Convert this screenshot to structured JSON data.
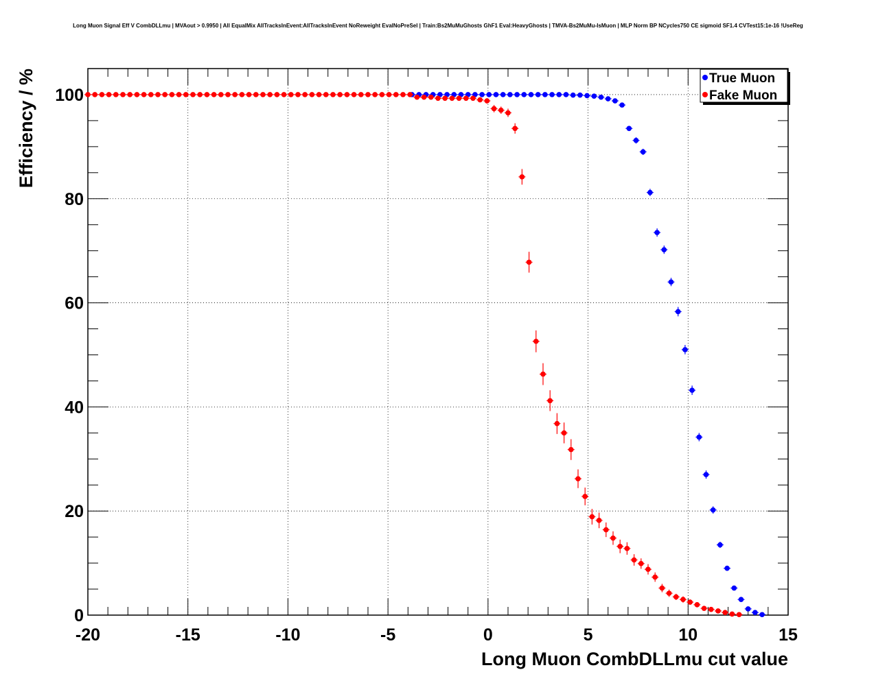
{
  "chart_data": {
    "type": "scatter",
    "title": "Long Muon Signal Eff V CombDLLmu | MVAout > 0.9950 | All EqualMix AllTracksInEvent:AllTracksInEvent NoReweight EvalNoPreSel | Train:Bs2MuMuGhosts GhF1 Eval:HeavyGhosts | TMVA-Bs2MuMu-IsMuon | MLP Norm BP NCycles750 CE sigmoid SF1.4 CVTest15:1e-16 !UseReg",
    "xlabel": "Long Muon CombDLLmu cut value",
    "ylabel": "Efficiency / %",
    "xlim": [
      -20,
      15
    ],
    "ylim": [
      0,
      105
    ],
    "xticks": [
      -20,
      -15,
      -10,
      -5,
      0,
      5,
      10,
      15
    ],
    "yticks": [
      0,
      20,
      40,
      60,
      80,
      100
    ],
    "xtick_labels": [
      "-20",
      "-15",
      "-10",
      "-5",
      "0",
      "5",
      "10",
      "15"
    ],
    "ytick_labels": [
      "0",
      "20",
      "40",
      "60",
      "80",
      "100"
    ],
    "grid": true,
    "legend_position": "top-right",
    "series": [
      {
        "name": "True Muon",
        "color": "#0000ff",
        "x": [
          -3.8,
          -3.45,
          -3.1,
          -2.75,
          -2.4,
          -2.05,
          -1.7,
          -1.35,
          -1.0,
          -0.65,
          -0.3,
          0.05,
          0.4,
          0.75,
          1.1,
          1.45,
          1.8,
          2.15,
          2.5,
          2.85,
          3.2,
          3.55,
          3.9,
          4.25,
          4.6,
          4.95,
          5.3,
          5.65,
          6.0,
          6.35,
          6.7,
          7.05,
          7.4,
          7.75,
          8.1,
          8.45,
          8.8,
          9.15,
          9.5,
          9.85,
          10.2,
          10.55,
          10.9,
          11.25,
          11.6,
          11.95,
          12.3,
          12.65,
          13.0,
          13.35,
          13.7
        ],
        "y": [
          100,
          100,
          100,
          100,
          100,
          100,
          100,
          100,
          100,
          100,
          100,
          100,
          100,
          100,
          100,
          100,
          100,
          100,
          100,
          100,
          100,
          100,
          100,
          99.9,
          99.9,
          99.8,
          99.7,
          99.5,
          99.2,
          98.8,
          98.0,
          93.5,
          91.2,
          89.0,
          81.2,
          73.5,
          70.2,
          64.0,
          58.3,
          51.0,
          43.2,
          34.2,
          27.0,
          20.2,
          13.5,
          9.0,
          5.2,
          3.0,
          1.2,
          0.5,
          0.1
        ],
        "yerr": [
          0,
          0,
          0,
          0,
          0,
          0,
          0,
          0,
          0,
          0,
          0,
          0,
          0,
          0,
          0,
          0,
          0,
          0,
          0,
          0,
          0,
          0,
          0,
          0,
          0,
          0,
          0,
          0.2,
          0.2,
          0.3,
          0.4,
          0.5,
          0.6,
          0.6,
          0.7,
          0.8,
          0.8,
          0.8,
          0.9,
          0.9,
          0.9,
          0.8,
          0.8,
          0.7,
          0.6,
          0.5,
          0.4,
          0.3,
          0.2,
          0.2,
          0.1
        ]
      },
      {
        "name": "Fake Muon",
        "color": "#ff0000",
        "x": [
          -20.0,
          -19.65,
          -19.3,
          -18.95,
          -18.6,
          -18.25,
          -17.9,
          -17.55,
          -17.2,
          -16.85,
          -16.5,
          -16.15,
          -15.8,
          -15.45,
          -15.1,
          -14.75,
          -14.4,
          -14.05,
          -13.7,
          -13.35,
          -13.0,
          -12.65,
          -12.3,
          -11.95,
          -11.6,
          -11.25,
          -10.9,
          -10.55,
          -10.2,
          -9.85,
          -9.5,
          -9.15,
          -8.8,
          -8.45,
          -8.1,
          -7.75,
          -7.4,
          -7.05,
          -6.7,
          -6.35,
          -6.0,
          -5.65,
          -5.3,
          -4.95,
          -4.6,
          -4.25,
          -3.9,
          -3.55,
          -3.2,
          -2.85,
          -2.5,
          -2.15,
          -1.8,
          -1.45,
          -1.1,
          -0.75,
          -0.4,
          -0.05,
          0.3,
          0.65,
          1.0,
          1.35,
          1.7,
          2.05,
          2.4,
          2.75,
          3.1,
          3.45,
          3.8,
          4.15,
          4.5,
          4.85,
          5.2,
          5.55,
          5.9,
          6.25,
          6.6,
          6.95,
          7.3,
          7.65,
          8.0,
          8.35,
          8.7,
          9.05,
          9.4,
          9.75,
          10.1,
          10.45,
          10.8,
          11.15,
          11.5,
          11.85,
          12.2,
          12.55
        ],
        "y": [
          100,
          100,
          100,
          100,
          100,
          100,
          100,
          100,
          100,
          100,
          100,
          100,
          100,
          100,
          100,
          100,
          100,
          100,
          100,
          100,
          100,
          100,
          100,
          100,
          100,
          100,
          100,
          100,
          100,
          100,
          100,
          100,
          100,
          100,
          100,
          100,
          100,
          100,
          100,
          100,
          100,
          100,
          100,
          100,
          100,
          100,
          100,
          99.5,
          99.5,
          99.5,
          99.3,
          99.3,
          99.3,
          99.3,
          99.3,
          99.3,
          99.0,
          98.8,
          97.3,
          97.0,
          96.5,
          93.5,
          84.2,
          67.8,
          52.6,
          46.3,
          41.2,
          36.8,
          35.0,
          31.8,
          26.2,
          22.8,
          18.9,
          18.2,
          16.4,
          14.8,
          13.2,
          12.8,
          10.6,
          9.9,
          8.8,
          7.3,
          5.2,
          4.2,
          3.5,
          3.0,
          2.5,
          2.0,
          1.3,
          1.1,
          0.8,
          0.5,
          0.2,
          0.1
        ],
        "yerr": [
          0,
          0,
          0,
          0,
          0,
          0,
          0,
          0,
          0,
          0,
          0,
          0,
          0,
          0,
          0,
          0,
          0,
          0,
          0,
          0,
          0,
          0,
          0,
          0,
          0,
          0,
          0,
          0,
          0,
          0,
          0,
          0,
          0,
          0,
          0,
          0,
          0,
          0,
          0,
          0,
          0,
          0,
          0,
          0,
          0,
          0,
          0,
          0.3,
          0.3,
          0.3,
          0.3,
          0.3,
          0.3,
          0.3,
          0.3,
          0.3,
          0.4,
          0.5,
          0.7,
          0.7,
          0.8,
          1.0,
          1.5,
          2.0,
          2.1,
          2.1,
          2.0,
          2.0,
          2.0,
          2.0,
          1.8,
          1.7,
          1.5,
          1.5,
          1.4,
          1.3,
          1.3,
          1.2,
          1.1,
          1.0,
          1.0,
          0.9,
          0.8,
          0.7,
          0.6,
          0.6,
          0.5,
          0.5,
          0.4,
          0.4,
          0.3,
          0.3,
          0.2,
          0.1
        ]
      }
    ]
  }
}
